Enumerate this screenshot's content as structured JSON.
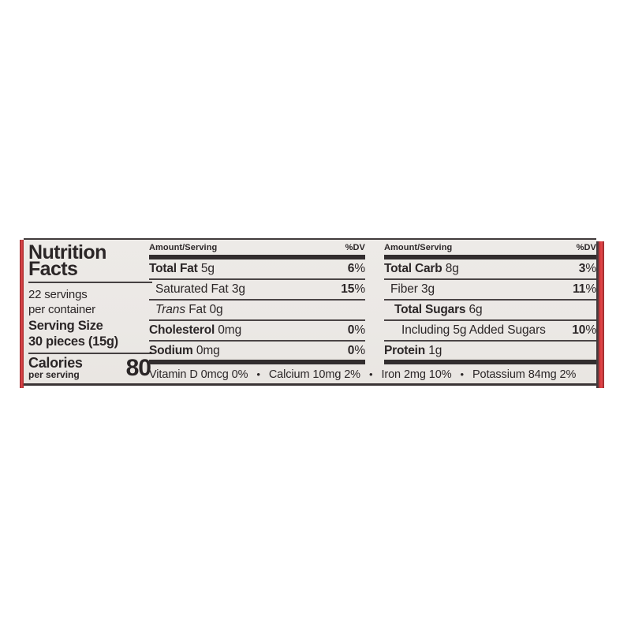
{
  "label": {
    "title_line1": "Nutrition",
    "title_line2": "Facts",
    "servings_line1": "22 servings",
    "servings_line2": "per container",
    "serving_size_line1": "Serving Size",
    "serving_size_line2": "30 pieces (15g)",
    "calories_label": "Calories",
    "calories_sublabel": "per serving",
    "calories_value": "80",
    "columns": [
      {
        "header_left": "Amount/Serving",
        "header_right": "%DV",
        "rows": [
          {
            "bold": "Total Fat",
            "rest": " 5g",
            "dv_num": "6",
            "dv_sign": "%"
          },
          {
            "rest": "Saturated Fat 3g",
            "dv_num": "15",
            "dv_sign": "%"
          },
          {
            "italic": "Trans",
            "rest": " Fat 0g",
            "dv_num": "",
            "dv_sign": ""
          },
          {
            "bold": "Cholesterol",
            "rest": " 0mg",
            "dv_num": "0",
            "dv_sign": "%"
          },
          {
            "bold": "Sodium",
            "rest": " 0mg",
            "dv_num": "0",
            "dv_sign": "%"
          }
        ]
      },
      {
        "header_left": "Amount/Serving",
        "header_right": "%DV",
        "rows": [
          {
            "bold": "Total Carb",
            "rest": " 8g",
            "dv_num": "3",
            "dv_sign": "%"
          },
          {
            "rest": "Fiber 3g",
            "dv_num": "11",
            "dv_sign": "%"
          },
          {
            "bold": "Total Sugars",
            "rest": " 6g",
            "dv_num": "",
            "dv_sign": ""
          },
          {
            "rest": "Including 5g Added Sugars",
            "dv_num": "10",
            "dv_sign": "%"
          },
          {
            "bold": "Protein",
            "rest": " 1g",
            "dv_num": "",
            "dv_sign": ""
          }
        ]
      }
    ],
    "micronutrients": {
      "separator": "•",
      "segments": [
        "Vitamin D 0mcg 0%",
        "Calcium 10mg 2%",
        "Iron 2mg 10%",
        "Potassium 84mg 2%"
      ]
    },
    "colors": {
      "label_background": "#ebe8e5",
      "text": "#2b2627",
      "red_stripe": "#d7383b",
      "thick_bar": "#322d2e",
      "thin_rule": "#4b4546"
    }
  }
}
